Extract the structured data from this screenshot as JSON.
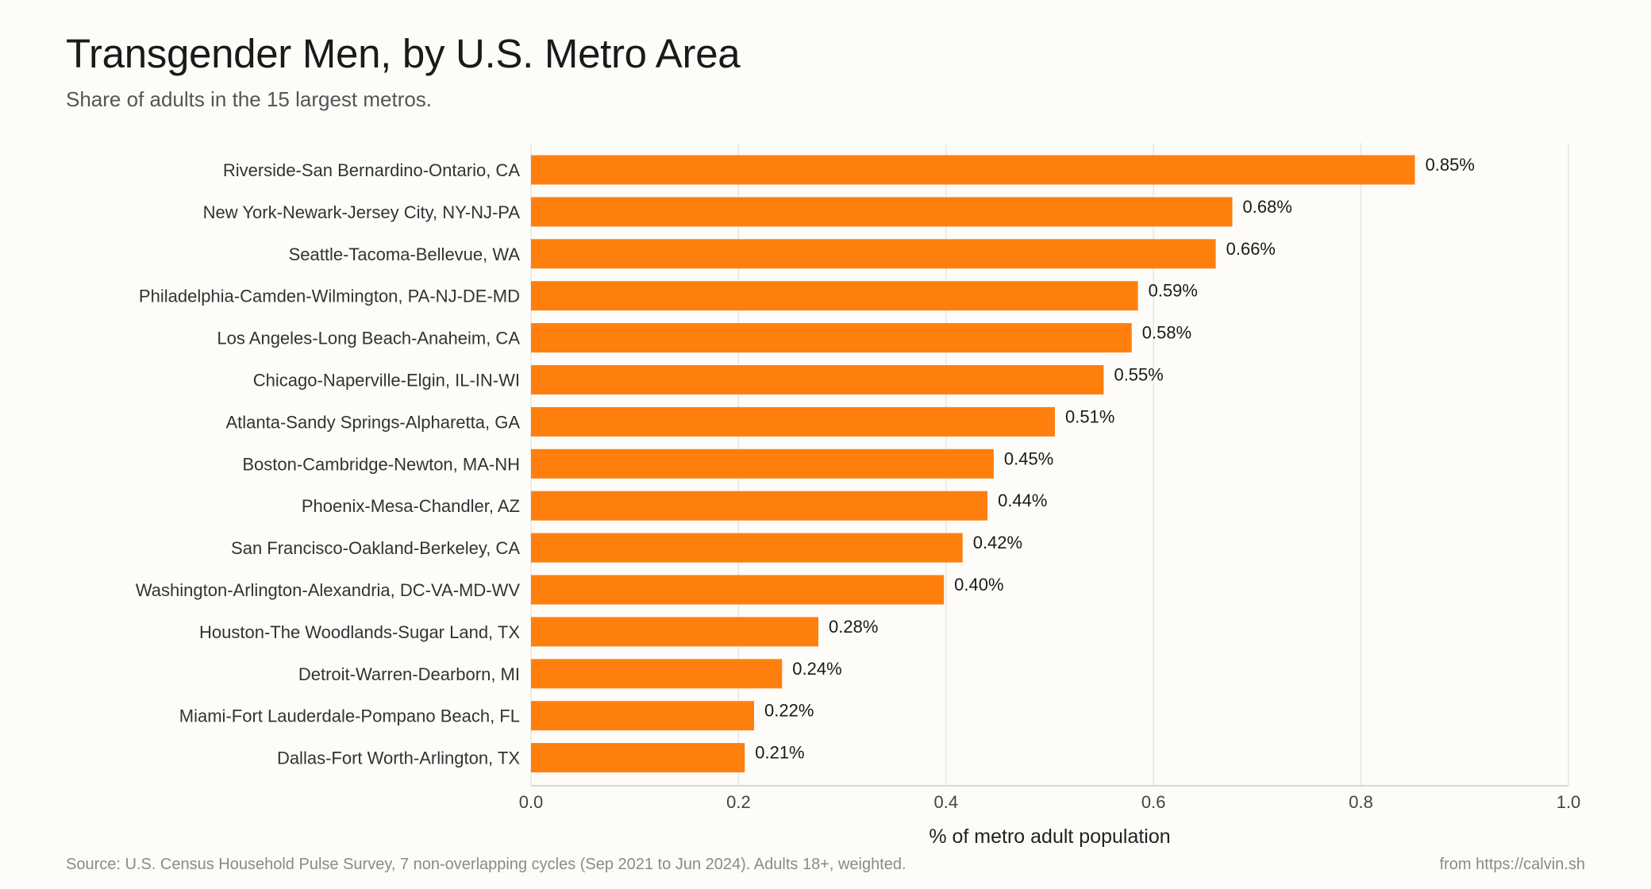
{
  "chart_data": {
    "type": "bar",
    "orientation": "horizontal",
    "title": "Transgender Men, by U.S. Metro Area",
    "subtitle": "Share of adults in the 15 largest metros.",
    "categories": [
      "Riverside-San Bernardino-Ontario, CA",
      "New York-Newark-Jersey City, NY-NJ-PA",
      "Seattle-Tacoma-Bellevue, WA",
      "Philadelphia-Camden-Wilmington, PA-NJ-DE-MD",
      "Los Angeles-Long Beach-Anaheim, CA",
      "Chicago-Naperville-Elgin, IL-IN-WI",
      "Atlanta-Sandy Springs-Alpharetta, GA",
      "Boston-Cambridge-Newton, MA-NH",
      "Phoenix-Mesa-Chandler, AZ",
      "San Francisco-Oakland-Berkeley, CA",
      "Washington-Arlington-Alexandria, DC-VA-MD-WV",
      "Houston-The Woodlands-Sugar Land, TX",
      "Detroit-Warren-Dearborn, MI",
      "Miami-Fort Lauderdale-Pompano Beach, FL",
      "Dallas-Fort Worth-Arlington, TX"
    ],
    "values": [
      0.852,
      0.676,
      0.66,
      0.585,
      0.579,
      0.552,
      0.505,
      0.446,
      0.44,
      0.416,
      0.398,
      0.277,
      0.242,
      0.215,
      0.206
    ],
    "value_labels": [
      "0.85%",
      "0.68%",
      "0.66%",
      "0.59%",
      "0.58%",
      "0.55%",
      "0.51%",
      "0.45%",
      "0.44%",
      "0.42%",
      "0.40%",
      "0.28%",
      "0.24%",
      "0.22%",
      "0.21%"
    ],
    "xlabel": "% of metro adult population",
    "ylabel": "",
    "xlim": [
      0,
      1.0
    ],
    "xticks": [
      "0.0",
      "0.2",
      "0.4",
      "0.6",
      "0.8",
      "1.0"
    ],
    "grid": true,
    "bar_color": "#ff7f0e"
  },
  "footer": {
    "source": "Source: U.S. Census Household Pulse Survey, 7 non-overlapping cycles (Sep 2021 to Jun 2024). Adults 18+, weighted.",
    "credit": "from https://calvin.sh"
  }
}
